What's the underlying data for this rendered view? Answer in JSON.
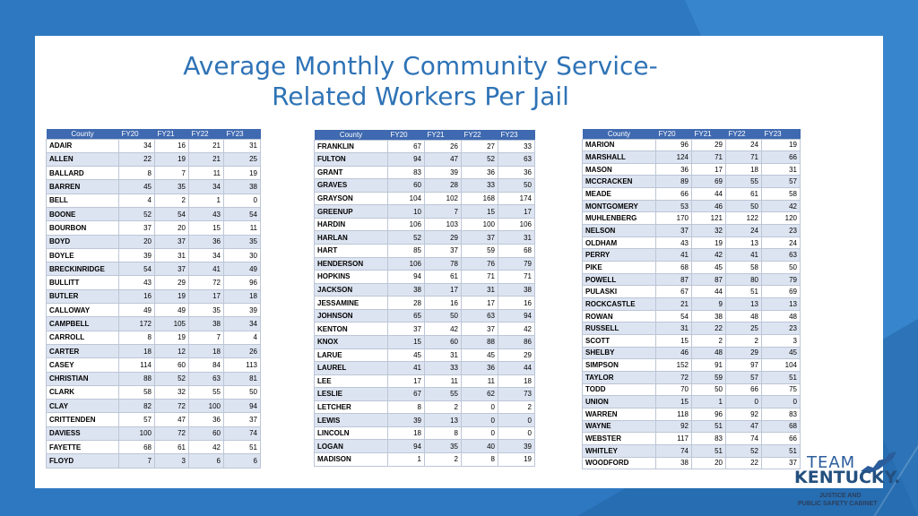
{
  "title_line1": "Average Monthly Community Service-",
  "title_line2": "Related Workers Per Jail",
  "headers": [
    "County",
    "FY20",
    "FY21",
    "FY22",
    "FY23"
  ],
  "table1": [
    [
      "ADAIR",
      "34",
      "16",
      "21",
      "31"
    ],
    [
      "ALLEN",
      "22",
      "19",
      "21",
      "25"
    ],
    [
      "BALLARD",
      "8",
      "7",
      "11",
      "19"
    ],
    [
      "BARREN",
      "45",
      "35",
      "34",
      "38"
    ],
    [
      "BELL",
      "4",
      "2",
      "1",
      "0"
    ],
    [
      "BOONE",
      "52",
      "54",
      "43",
      "54"
    ],
    [
      "BOURBON",
      "37",
      "20",
      "15",
      "11"
    ],
    [
      "BOYD",
      "20",
      "37",
      "36",
      "35"
    ],
    [
      "BOYLE",
      "39",
      "31",
      "34",
      "30"
    ],
    [
      "BRECKINRIDGE",
      "54",
      "37",
      "41",
      "49"
    ],
    [
      "BULLITT",
      "43",
      "29",
      "72",
      "96"
    ],
    [
      "BUTLER",
      "16",
      "19",
      "17",
      "18"
    ],
    [
      "CALLOWAY",
      "49",
      "49",
      "35",
      "39"
    ],
    [
      "CAMPBELL",
      "172",
      "105",
      "38",
      "34"
    ],
    [
      "CARROLL",
      "8",
      "19",
      "7",
      "4"
    ],
    [
      "CARTER",
      "18",
      "12",
      "18",
      "26"
    ],
    [
      "CASEY",
      "114",
      "60",
      "84",
      "113"
    ],
    [
      "CHRISTIAN",
      "88",
      "52",
      "63",
      "81"
    ],
    [
      "CLARK",
      "58",
      "32",
      "55",
      "50"
    ],
    [
      "CLAY",
      "82",
      "72",
      "100",
      "94"
    ],
    [
      "CRITTENDEN",
      "57",
      "47",
      "36",
      "37"
    ],
    [
      "DAVIESS",
      "100",
      "72",
      "60",
      "74"
    ],
    [
      "FAYETTE",
      "68",
      "61",
      "42",
      "51"
    ],
    [
      "FLOYD",
      "7",
      "3",
      "6",
      "6"
    ]
  ],
  "table2": [
    [
      "FRANKLIN",
      "67",
      "26",
      "27",
      "33"
    ],
    [
      "FULTON",
      "94",
      "47",
      "52",
      "63"
    ],
    [
      "GRANT",
      "83",
      "39",
      "36",
      "36"
    ],
    [
      "GRAVES",
      "60",
      "28",
      "33",
      "50"
    ],
    [
      "GRAYSON",
      "104",
      "102",
      "168",
      "174"
    ],
    [
      "GREENUP",
      "10",
      "7",
      "15",
      "17"
    ],
    [
      "HARDIN",
      "106",
      "103",
      "100",
      "106"
    ],
    [
      "HARLAN",
      "52",
      "29",
      "37",
      "31"
    ],
    [
      "HART",
      "85",
      "37",
      "59",
      "68"
    ],
    [
      "HENDERSON",
      "106",
      "78",
      "76",
      "79"
    ],
    [
      "HOPKINS",
      "94",
      "61",
      "71",
      "71"
    ],
    [
      "JACKSON",
      "38",
      "17",
      "31",
      "38"
    ],
    [
      "JESSAMINE",
      "28",
      "16",
      "17",
      "16"
    ],
    [
      "JOHNSON",
      "65",
      "50",
      "63",
      "94"
    ],
    [
      "KENTON",
      "37",
      "42",
      "37",
      "42"
    ],
    [
      "KNOX",
      "15",
      "60",
      "88",
      "86"
    ],
    [
      "LARUE",
      "45",
      "31",
      "45",
      "29"
    ],
    [
      "LAUREL",
      "41",
      "33",
      "36",
      "44"
    ],
    [
      "LEE",
      "17",
      "11",
      "11",
      "18"
    ],
    [
      "LESLIE",
      "67",
      "55",
      "62",
      "73"
    ],
    [
      "LETCHER",
      "8",
      "2",
      "0",
      "2"
    ],
    [
      "LEWIS",
      "39",
      "13",
      "0",
      "0"
    ],
    [
      "LINCOLN",
      "18",
      "8",
      "0",
      "0"
    ],
    [
      "LOGAN",
      "94",
      "35",
      "40",
      "39"
    ],
    [
      "MADISON",
      "1",
      "2",
      "8",
      "19"
    ]
  ],
  "table3": [
    [
      "MARION",
      "96",
      "29",
      "24",
      "19"
    ],
    [
      "MARSHALL",
      "124",
      "71",
      "71",
      "66"
    ],
    [
      "MASON",
      "36",
      "17",
      "18",
      "31"
    ],
    [
      "MCCRACKEN",
      "89",
      "69",
      "55",
      "57"
    ],
    [
      "MEADE",
      "66",
      "44",
      "61",
      "58"
    ],
    [
      "MONTGOMERY",
      "53",
      "46",
      "50",
      "42"
    ],
    [
      "MUHLENBERG",
      "170",
      "121",
      "122",
      "120"
    ],
    [
      "NELSON",
      "37",
      "32",
      "24",
      "23"
    ],
    [
      "OLDHAM",
      "43",
      "19",
      "13",
      "24"
    ],
    [
      "PERRY",
      "41",
      "42",
      "41",
      "63"
    ],
    [
      "PIKE",
      "68",
      "45",
      "58",
      "50"
    ],
    [
      "POWELL",
      "87",
      "87",
      "80",
      "79"
    ],
    [
      "PULASKI",
      "67",
      "44",
      "51",
      "69"
    ],
    [
      "ROCKCASTLE",
      "21",
      "9",
      "13",
      "13"
    ],
    [
      "ROWAN",
      "54",
      "38",
      "48",
      "48"
    ],
    [
      "RUSSELL",
      "31",
      "22",
      "25",
      "23"
    ],
    [
      "SCOTT",
      "15",
      "2",
      "2",
      "3"
    ],
    [
      "SHELBY",
      "46",
      "48",
      "29",
      "45"
    ],
    [
      "SIMPSON",
      "152",
      "91",
      "97",
      "104"
    ],
    [
      "TAYLOR",
      "72",
      "59",
      "57",
      "51"
    ],
    [
      "TODD",
      "70",
      "50",
      "66",
      "75"
    ],
    [
      "UNION",
      "15",
      "1",
      "0",
      "0"
    ],
    [
      "WARREN",
      "118",
      "96",
      "92",
      "83"
    ],
    [
      "WAYNE",
      "92",
      "51",
      "47",
      "68"
    ],
    [
      "WEBSTER",
      "117",
      "83",
      "74",
      "66"
    ],
    [
      "WHITLEY",
      "74",
      "51",
      "52",
      "51"
    ],
    [
      "WOODFORD",
      "38",
      "20",
      "22",
      "37"
    ]
  ],
  "logo": {
    "team": "TEAM",
    "kentucky": "KENTUCKY.",
    "line1": "JUSTICE AND",
    "line2": "PUBLIC SAFETY CABINET"
  },
  "colors": {
    "header": "#3f69b0",
    "title": "#2f73b6",
    "band": "#dde4f1",
    "background": "#2e78c2"
  }
}
